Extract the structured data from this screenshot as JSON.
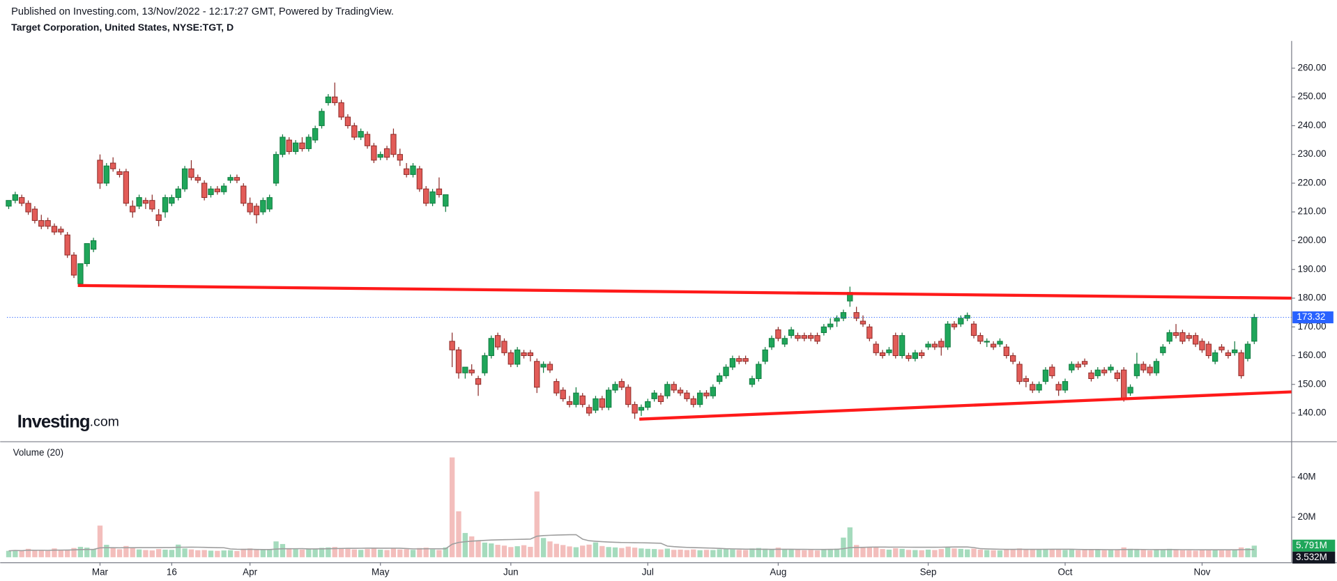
{
  "header": {
    "published": "Published on Investing.com, 13/Nov/2022 - 12:17:27 GMT, Powered by TradingView.",
    "symbol": "Target Corporation, United States, NYSE:TGT, D"
  },
  "chart_data": {
    "type": "candlestick",
    "logo": {
      "brand": "Investing",
      "suffix": ".com"
    },
    "categories": [
      null,
      null,
      null,
      null,
      null,
      null,
      null,
      null,
      null,
      null,
      null,
      null,
      null,
      null,
      "Mar",
      null,
      null,
      null,
      null,
      null,
      null,
      null,
      null,
      null,
      null,
      "16",
      null,
      null,
      null,
      null,
      null,
      null,
      null,
      null,
      null,
      null,
      null,
      "Apr",
      null,
      null,
      null,
      null,
      null,
      null,
      null,
      null,
      null,
      null,
      null,
      null,
      null,
      null,
      null,
      null,
      null,
      null,
      null,
      "May",
      null,
      null,
      null,
      null,
      null,
      null,
      null,
      null,
      null,
      null,
      null,
      null,
      null,
      null,
      null,
      null,
      null,
      null,
      null,
      "Jun",
      null,
      null,
      null,
      null,
      null,
      null,
      null,
      null,
      null,
      null,
      null,
      null,
      null,
      null,
      null,
      null,
      null,
      null,
      null,
      null,
      "Jul",
      null,
      null,
      null,
      null,
      null,
      null,
      null,
      null,
      null,
      null,
      null,
      null,
      null,
      null,
      null,
      null,
      null,
      null,
      null,
      "Aug",
      null,
      null,
      null,
      null,
      null,
      null,
      null,
      null,
      null,
      null,
      null,
      null,
      null,
      null,
      null,
      null,
      null,
      null,
      null,
      null,
      null,
      null,
      "Sep",
      null,
      null,
      null,
      null,
      null,
      null,
      null,
      null,
      null,
      null,
      null,
      null,
      null,
      null,
      null,
      null,
      null,
      null,
      null,
      null,
      "Oct",
      null,
      null,
      null,
      null,
      null,
      null,
      null,
      null,
      null,
      null,
      null,
      null,
      null,
      null,
      null,
      null,
      null,
      null,
      null,
      null,
      "Nov",
      null,
      null,
      null,
      null,
      null,
      null,
      null,
      null
    ],
    "ohlc": [
      [
        212,
        214,
        211,
        214
      ],
      [
        214,
        217,
        213,
        216
      ],
      [
        215,
        216,
        212,
        213
      ],
      [
        213,
        214,
        209,
        210
      ],
      [
        211,
        212,
        206,
        207
      ],
      [
        207,
        209,
        204,
        205
      ],
      [
        207,
        208,
        204,
        205
      ],
      [
        205,
        206,
        202,
        203
      ],
      [
        204,
        205,
        202,
        203
      ],
      [
        202,
        203,
        194,
        195
      ],
      [
        195,
        196,
        187,
        188
      ],
      [
        185,
        192,
        184,
        192
      ],
      [
        192,
        199,
        191,
        199
      ],
      [
        197,
        201,
        196,
        200
      ],
      [
        228,
        230,
        218,
        220
      ],
      [
        220,
        227,
        219,
        226
      ],
      [
        227,
        229,
        224,
        225
      ],
      [
        224,
        225,
        222,
        223
      ],
      [
        224,
        225,
        212,
        213
      ],
      [
        212,
        214,
        208,
        210
      ],
      [
        212,
        216,
        211,
        215
      ],
      [
        214,
        215,
        211,
        213
      ],
      [
        214,
        216,
        210,
        211
      ],
      [
        209,
        211,
        205,
        207
      ],
      [
        210,
        216,
        208,
        215
      ],
      [
        213,
        216,
        212,
        215
      ],
      [
        215,
        219,
        214,
        218
      ],
      [
        218,
        226,
        217,
        225
      ],
      [
        225,
        228,
        221,
        222
      ],
      [
        222,
        223,
        220,
        221
      ],
      [
        220,
        221,
        214,
        215
      ],
      [
        216,
        219,
        215,
        218
      ],
      [
        218,
        219,
        216,
        217
      ],
      [
        217,
        220,
        216,
        219
      ],
      [
        221,
        223,
        220,
        222
      ],
      [
        222,
        223,
        220,
        221
      ],
      [
        219,
        220,
        212,
        213
      ],
      [
        213,
        215,
        209,
        210
      ],
      [
        212,
        213,
        206,
        209
      ],
      [
        210,
        215,
        209,
        214
      ],
      [
        211,
        216,
        210,
        215
      ],
      [
        220,
        231,
        219,
        230
      ],
      [
        230,
        237,
        229,
        236
      ],
      [
        235,
        236,
        230,
        231
      ],
      [
        231,
        235,
        230,
        234
      ],
      [
        234,
        236,
        231,
        232
      ],
      [
        232,
        237,
        231,
        236
      ],
      [
        235,
        240,
        234,
        239
      ],
      [
        240,
        246,
        239,
        245
      ],
      [
        248,
        251,
        247,
        250
      ],
      [
        250,
        255,
        247,
        248
      ],
      [
        248,
        249,
        242,
        243
      ],
      [
        243,
        244,
        239,
        240
      ],
      [
        240,
        241,
        235,
        236
      ],
      [
        236,
        239,
        235,
        238
      ],
      [
        237,
        238,
        232,
        233
      ],
      [
        233,
        234,
        227,
        228
      ],
      [
        229,
        231,
        228,
        230
      ],
      [
        232,
        233,
        228,
        229
      ],
      [
        237,
        239,
        229,
        230
      ],
      [
        230,
        232,
        226,
        228
      ],
      [
        225,
        227,
        222,
        223
      ],
      [
        223,
        227,
        222,
        226
      ],
      [
        225,
        226,
        217,
        218
      ],
      [
        218,
        219,
        212,
        213
      ],
      [
        213,
        218,
        212,
        217
      ],
      [
        218,
        222,
        215,
        216
      ],
      [
        212,
        216,
        210,
        216
      ],
      [
        165,
        168,
        156,
        162
      ],
      [
        162,
        163,
        152,
        154
      ],
      [
        154,
        156,
        152,
        156
      ],
      [
        155,
        157,
        153,
        154
      ],
      [
        152,
        153,
        146,
        150
      ],
      [
        154,
        161,
        153,
        160
      ],
      [
        160,
        167,
        159,
        166
      ],
      [
        167,
        168,
        162,
        163
      ],
      [
        165,
        166,
        160,
        161
      ],
      [
        161,
        162,
        156,
        157
      ],
      [
        157,
        163,
        156,
        162
      ],
      [
        161,
        162,
        159,
        160
      ],
      [
        161,
        162,
        158,
        160
      ],
      [
        158,
        159,
        147,
        149
      ],
      [
        156,
        158,
        154,
        157
      ],
      [
        157,
        158,
        154,
        155
      ],
      [
        151,
        152,
        146,
        147
      ],
      [
        148,
        149,
        144,
        145
      ],
      [
        144,
        146,
        142,
        143
      ],
      [
        143,
        149,
        142,
        147
      ],
      [
        146,
        147,
        142,
        143
      ],
      [
        142,
        143,
        139,
        140
      ],
      [
        141,
        146,
        140,
        145
      ],
      [
        145,
        146,
        141,
        142
      ],
      [
        142,
        149,
        141,
        148
      ],
      [
        148,
        151,
        147,
        150
      ],
      [
        151,
        152,
        148,
        149
      ],
      [
        149,
        150,
        142,
        143
      ],
      [
        143,
        144,
        138,
        140
      ],
      [
        141,
        143,
        139,
        142
      ],
      [
        142,
        145,
        141,
        144
      ],
      [
        145,
        148,
        144,
        147
      ],
      [
        146,
        147,
        143,
        144
      ],
      [
        146,
        151,
        145,
        150
      ],
      [
        150,
        151,
        147,
        148
      ],
      [
        148,
        149,
        146,
        147
      ],
      [
        147,
        148,
        144,
        145
      ],
      [
        145,
        146,
        142,
        143
      ],
      [
        143,
        148,
        142,
        147
      ],
      [
        147,
        148,
        145,
        146
      ],
      [
        146,
        150,
        145,
        149
      ],
      [
        151,
        154,
        150,
        153
      ],
      [
        153,
        157,
        152,
        156
      ],
      [
        156,
        160,
        155,
        159
      ],
      [
        159,
        160,
        157,
        158
      ],
      [
        159,
        160,
        157,
        158
      ],
      [
        150,
        153,
        149,
        152
      ],
      [
        152,
        158,
        151,
        157
      ],
      [
        158,
        163,
        157,
        162
      ],
      [
        163,
        167,
        162,
        166
      ],
      [
        169,
        170,
        165,
        166
      ],
      [
        164,
        167,
        163,
        166
      ],
      [
        167,
        170,
        166,
        169
      ],
      [
        167,
        168,
        165,
        166
      ],
      [
        167,
        168,
        165,
        166
      ],
      [
        167,
        168,
        165,
        166
      ],
      [
        167,
        168,
        164,
        165
      ],
      [
        168,
        171,
        167,
        170
      ],
      [
        170,
        173,
        169,
        171
      ],
      [
        172,
        174,
        170,
        173
      ],
      [
        173,
        176,
        172,
        175
      ],
      [
        179,
        184,
        177,
        182
      ],
      [
        175,
        177,
        172,
        173
      ],
      [
        172,
        174,
        170,
        171
      ],
      [
        170,
        171,
        165,
        166
      ],
      [
        164,
        165,
        160,
        161
      ],
      [
        161,
        162,
        159,
        160
      ],
      [
        161,
        163,
        160,
        162
      ],
      [
        167,
        168,
        159,
        160
      ],
      [
        160,
        168,
        159,
        167
      ],
      [
        160,
        161,
        158,
        159
      ],
      [
        159,
        162,
        158,
        161
      ],
      [
        161,
        162,
        159,
        160
      ],
      [
        163,
        165,
        162,
        164
      ],
      [
        164,
        165,
        162,
        163
      ],
      [
        165,
        166,
        160,
        163
      ],
      [
        163,
        172,
        162,
        171
      ],
      [
        171,
        172,
        169,
        170
      ],
      [
        171,
        174,
        170,
        173
      ],
      [
        173,
        175,
        172,
        174
      ],
      [
        171,
        172,
        166,
        167
      ],
      [
        167,
        168,
        164,
        165
      ],
      [
        165,
        166,
        163,
        165
      ],
      [
        164,
        165,
        162,
        163
      ],
      [
        164,
        166,
        163,
        165
      ],
      [
        163,
        164,
        159,
        160
      ],
      [
        160,
        161,
        157,
        158
      ],
      [
        157,
        158,
        150,
        151
      ],
      [
        152,
        153,
        149,
        151
      ],
      [
        150,
        151,
        147,
        148
      ],
      [
        148,
        151,
        147,
        150
      ],
      [
        151,
        156,
        150,
        155
      ],
      [
        156,
        157,
        152,
        153
      ],
      [
        150,
        151,
        146,
        148
      ],
      [
        148,
        152,
        147,
        151
      ],
      [
        155,
        158,
        154,
        157
      ],
      [
        157,
        158,
        155,
        156
      ],
      [
        158,
        159,
        156,
        157
      ],
      [
        154,
        155,
        151,
        152
      ],
      [
        153,
        156,
        152,
        155
      ],
      [
        155,
        156,
        153,
        154
      ],
      [
        155,
        157,
        154,
        156
      ],
      [
        154,
        155,
        151,
        152
      ],
      [
        155,
        156,
        144,
        145
      ],
      [
        147,
        150,
        146,
        149
      ],
      [
        153,
        161,
        152,
        157
      ],
      [
        157,
        158,
        154,
        155
      ],
      [
        156,
        157,
        153,
        154
      ],
      [
        154,
        159,
        153,
        158
      ],
      [
        161,
        164,
        160,
        163
      ],
      [
        165,
        169,
        164,
        168
      ],
      [
        168,
        171,
        166,
        167
      ],
      [
        168,
        169,
        164,
        165
      ],
      [
        167,
        168,
        165,
        166
      ],
      [
        167,
        168,
        163,
        164
      ],
      [
        165,
        166,
        161,
        162
      ],
      [
        164,
        165,
        159,
        160
      ],
      [
        158,
        162,
        157,
        161
      ],
      [
        163,
        164,
        161,
        162
      ],
      [
        161,
        162,
        159,
        160
      ],
      [
        161,
        165,
        160,
        162
      ],
      [
        161,
        162,
        152,
        153
      ],
      [
        159,
        165,
        158,
        164
      ],
      [
        165,
        174.5,
        164,
        173.32
      ]
    ],
    "up_color": "#1fa65a",
    "down_color": "#e25c58",
    "last_price_color": "#2962ff",
    "ylim": [
      130.2,
      269.5
    ],
    "yticks": [
      {
        "value": 140,
        "label": "140.00"
      },
      {
        "value": 150,
        "label": "150.00"
      },
      {
        "value": 160,
        "label": "160.00"
      },
      {
        "value": 170,
        "label": "170.00"
      },
      {
        "value": 180,
        "label": "180.00"
      },
      {
        "value": 190,
        "label": "190.00"
      },
      {
        "value": 200,
        "label": "200.00"
      },
      {
        "value": 210,
        "label": "210.00"
      },
      {
        "value": 220,
        "label": "220.00"
      },
      {
        "value": 230,
        "label": "230.00"
      },
      {
        "value": 240,
        "label": "240.00"
      },
      {
        "value": 250,
        "label": "250.00"
      },
      {
        "value": 260,
        "label": "260.00"
      }
    ],
    "trendlines": [
      {
        "color": "#ff1a1a",
        "from": [
          10.6,
          184.4
        ],
        "to": [
          196.7,
          180
        ]
      },
      {
        "color": "#ff1a1a",
        "from": [
          96.7,
          137.9
        ],
        "to": [
          196.7,
          147.4
        ]
      }
    ],
    "volume": {
      "title": "Volume (20)",
      "values": [
        3.2,
        3.6,
        3.1,
        4.2,
        3.3,
        3.5,
        3.2,
        4.4,
        3.6,
        3.8,
        4.6,
        5.2,
        4.8,
        4.1,
        15.8,
        6.2,
        4.7,
        4.0,
        5.6,
        4.5,
        3.9,
        3.6,
        3.4,
        4.1,
        3.8,
        3.7,
        6.3,
        4.4,
        3.9,
        3.5,
        3.6,
        3.3,
        3.2,
        3.4,
        3.5,
        3.1,
        4.2,
        4.4,
        3.9,
        3.8,
        4.1,
        7.9,
        6.6,
        4.5,
        4.1,
        3.8,
        4.0,
        4.2,
        4.7,
        4.9,
        5.1,
        4.6,
        4.2,
        3.9,
        3.7,
        4.1,
        4.3,
        3.8,
        3.6,
        4.5,
        3.9,
        4.0,
        3.7,
        4.6,
        4.8,
        3.9,
        3.6,
        4.9,
        49.8,
        22.9,
        12.1,
        10.4,
        8.5,
        7.3,
        6.9,
        6.2,
        5.8,
        5.1,
        5.5,
        6.0,
        5.2,
        32.8,
        9.6,
        7.9,
        6.7,
        6.1,
        5.4,
        5.0,
        5.8,
        6.3,
        7.4,
        5.6,
        5.1,
        4.9,
        4.6,
        5.3,
        4.8,
        4.4,
        4.2,
        4.1,
        3.9,
        4.3,
        3.7,
        3.8,
        3.6,
        3.9,
        3.5,
        3.7,
        3.6,
        4.0,
        4.2,
        3.9,
        3.7,
        3.6,
        4.4,
        4.6,
        4.3,
        4.1,
        4.8,
        3.9,
        3.8,
        3.7,
        3.5,
        3.6,
        3.4,
        3.8,
        4.0,
        4.3,
        9.8,
        14.9,
        6.1,
        4.8,
        5.2,
        4.9,
        4.1,
        3.8,
        4.5,
        4.2,
        3.7,
        3.6,
        3.5,
        3.8,
        3.6,
        4.1,
        5.0,
        4.4,
        4.2,
        3.9,
        4.3,
        3.8,
        3.6,
        3.5,
        3.4,
        3.9,
        4.1,
        4.4,
        4.0,
        3.9,
        3.7,
        4.2,
        3.8,
        4.1,
        3.6,
        3.9,
        3.5,
        3.6,
        3.7,
        3.8,
        3.5,
        3.6,
        3.7,
        4.9,
        4.2,
        3.9,
        3.6,
        3.4,
        3.7,
        3.9,
        4.2,
        3.6,
        3.5,
        3.4,
        3.3,
        3.6,
        3.5,
        3.7,
        3.4,
        3.6,
        3.8,
        4.9,
        4.5,
        5.791
      ],
      "ylim": [
        -2.5,
        57
      ],
      "yticks": [
        {
          "value": 20,
          "label": "20M"
        },
        {
          "value": 40,
          "label": "40M"
        }
      ],
      "last_label": "5.791M",
      "ma_label": "3.532M"
    }
  }
}
